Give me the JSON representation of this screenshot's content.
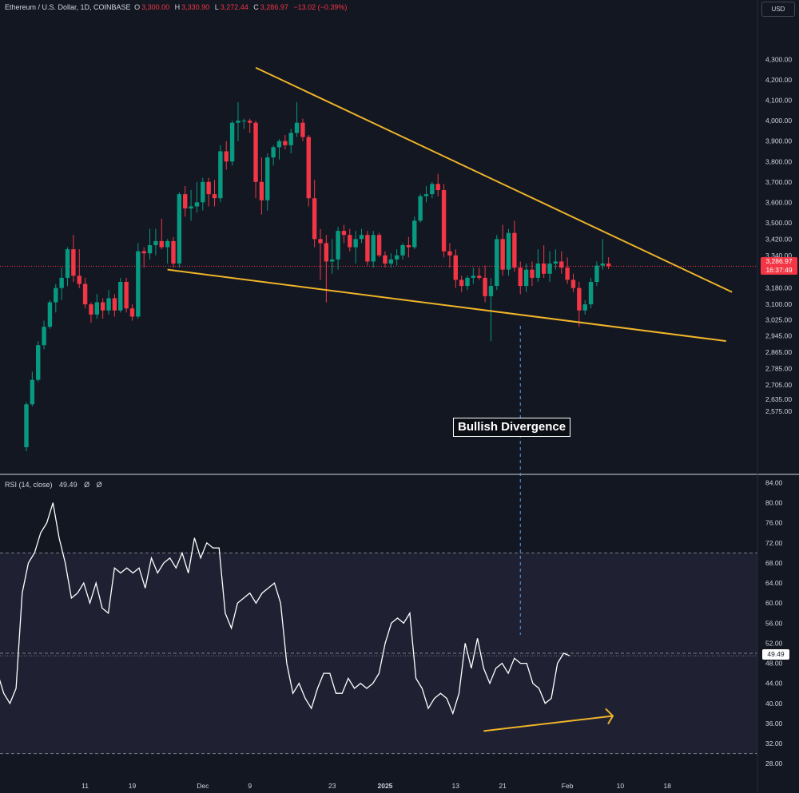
{
  "header": {
    "symbol": "Ethereum / U.S. Dollar, 1D, COINBASE",
    "o_label": "O",
    "o_value": "3,300.00",
    "h_label": "H",
    "h_value": "3,330.90",
    "l_label": "L",
    "l_value": "3,272.44",
    "c_label": "C",
    "c_value": "3,286.97",
    "change": "−13.02 (−0.39%)"
  },
  "currency_button": "USD",
  "price_tag": {
    "price": "3,286.97",
    "countdown": "16:37:49"
  },
  "rsi_legend": {
    "label": "RSI (14, close)",
    "value": "49.49",
    "extra1": "Ø",
    "extra2": "Ø"
  },
  "rsi_tag": "49.49",
  "annotation": "Bullish Divergence",
  "colors": {
    "background": "#131722",
    "bull": "#089981",
    "bear": "#f23645",
    "trendline": "#f0b429",
    "rsi_line": "#ffffff",
    "rsi_band": "#1f2133"
  },
  "chart_data": {
    "type": "candlestick",
    "title": "Ethereum / U.S. Dollar, 1D, COINBASE",
    "price_axis_ticks": [
      "4,300.00",
      "4,200.00",
      "4,100.00",
      "4,000.00",
      "3,900.00",
      "3,800.00",
      "3,700.00",
      "3,600.00",
      "3,500.00",
      "3,420.00",
      "3,340.00",
      "3,180.00",
      "3,100.00",
      "3,025.00",
      "2,945.00",
      "2,865.00",
      "2,785.00",
      "2,705.00",
      "2,635.00",
      "2,575.00"
    ],
    "price_axis_values": [
      4300,
      4200,
      4100,
      4000,
      3900,
      3800,
      3700,
      3600,
      3500,
      3420,
      3340,
      3180,
      3100,
      3025,
      2945,
      2865,
      2785,
      2705,
      2635,
      2575
    ],
    "rsi_axis_ticks": [
      "84.00",
      "80.00",
      "76.00",
      "72.00",
      "68.00",
      "64.00",
      "60.00",
      "56.00",
      "52.00",
      "48.00",
      "44.00",
      "40.00",
      "36.00",
      "32.00",
      "28.00"
    ],
    "rsi_axis_values": [
      84,
      80,
      76,
      72,
      68,
      64,
      60,
      56,
      52,
      48,
      44,
      40,
      36,
      32,
      28
    ],
    "x_ticks": [
      {
        "label": "11",
        "index": 10
      },
      {
        "label": "19",
        "index": 18
      },
      {
        "label": "Dec",
        "index": 30
      },
      {
        "label": "9",
        "index": 38
      },
      {
        "label": "23",
        "index": 52
      },
      {
        "label": "2025",
        "index": 61
      },
      {
        "label": "13",
        "index": 73
      },
      {
        "label": "21",
        "index": 81
      },
      {
        "label": "Feb",
        "index": 92
      },
      {
        "label": "10",
        "index": 101
      },
      {
        "label": "18",
        "index": 109
      }
    ],
    "candles": [
      {
        "o": 2400,
        "h": 2620,
        "l": 2380,
        "c": 2610
      },
      {
        "o": 2610,
        "h": 2770,
        "l": 2600,
        "c": 2730
      },
      {
        "o": 2730,
        "h": 2920,
        "l": 2720,
        "c": 2900
      },
      {
        "o": 2900,
        "h": 3020,
        "l": 2880,
        "c": 2990
      },
      {
        "o": 2990,
        "h": 3120,
        "l": 2980,
        "c": 3110
      },
      {
        "o": 3110,
        "h": 3200,
        "l": 3060,
        "c": 3180
      },
      {
        "o": 3180,
        "h": 3280,
        "l": 3120,
        "c": 3230
      },
      {
        "o": 3230,
        "h": 3380,
        "l": 3190,
        "c": 3370
      },
      {
        "o": 3370,
        "h": 3440,
        "l": 3210,
        "c": 3240
      },
      {
        "o": 3240,
        "h": 3370,
        "l": 3180,
        "c": 3200
      },
      {
        "o": 3200,
        "h": 3230,
        "l": 3080,
        "c": 3100
      },
      {
        "o": 3100,
        "h": 3110,
        "l": 3010,
        "c": 3050
      },
      {
        "o": 3050,
        "h": 3150,
        "l": 3030,
        "c": 3110
      },
      {
        "o": 3110,
        "h": 3130,
        "l": 3030,
        "c": 3070
      },
      {
        "o": 3070,
        "h": 3170,
        "l": 3050,
        "c": 3130
      },
      {
        "o": 3130,
        "h": 3150,
        "l": 3040,
        "c": 3070
      },
      {
        "o": 3070,
        "h": 3230,
        "l": 3060,
        "c": 3210
      },
      {
        "o": 3210,
        "h": 3230,
        "l": 3060,
        "c": 3080
      },
      {
        "o": 3080,
        "h": 3100,
        "l": 3020,
        "c": 3040
      },
      {
        "o": 3040,
        "h": 3400,
        "l": 3030,
        "c": 3360
      },
      {
        "o": 3360,
        "h": 3380,
        "l": 3280,
        "c": 3350
      },
      {
        "o": 3350,
        "h": 3470,
        "l": 3320,
        "c": 3390
      },
      {
        "o": 3390,
        "h": 3470,
        "l": 3340,
        "c": 3410
      },
      {
        "o": 3410,
        "h": 3520,
        "l": 3370,
        "c": 3380
      },
      {
        "o": 3380,
        "h": 3420,
        "l": 3300,
        "c": 3410
      },
      {
        "o": 3410,
        "h": 3430,
        "l": 3280,
        "c": 3300
      },
      {
        "o": 3300,
        "h": 3650,
        "l": 3280,
        "c": 3640
      },
      {
        "o": 3640,
        "h": 3680,
        "l": 3530,
        "c": 3570
      },
      {
        "o": 3570,
        "h": 3660,
        "l": 3510,
        "c": 3580
      },
      {
        "o": 3580,
        "h": 3700,
        "l": 3550,
        "c": 3600
      },
      {
        "o": 3600,
        "h": 3720,
        "l": 3560,
        "c": 3700
      },
      {
        "o": 3700,
        "h": 3720,
        "l": 3580,
        "c": 3640
      },
      {
        "o": 3640,
        "h": 3710,
        "l": 3580,
        "c": 3620
      },
      {
        "o": 3620,
        "h": 3880,
        "l": 3600,
        "c": 3850
      },
      {
        "o": 3850,
        "h": 3900,
        "l": 3760,
        "c": 3800
      },
      {
        "o": 3800,
        "h": 4000,
        "l": 3780,
        "c": 3990
      },
      {
        "o": 3990,
        "h": 4090,
        "l": 3900,
        "c": 4000
      },
      {
        "o": 4000,
        "h": 4010,
        "l": 3960,
        "c": 4000
      },
      {
        "o": 4000,
        "h": 4010,
        "l": 3940,
        "c": 3990
      },
      {
        "o": 3990,
        "h": 4000,
        "l": 3620,
        "c": 3700
      },
      {
        "o": 3700,
        "h": 3820,
        "l": 3540,
        "c": 3610
      },
      {
        "o": 3610,
        "h": 3840,
        "l": 3560,
        "c": 3820
      },
      {
        "o": 3820,
        "h": 3880,
        "l": 3780,
        "c": 3870
      },
      {
        "o": 3870,
        "h": 3910,
        "l": 3810,
        "c": 3900
      },
      {
        "o": 3900,
        "h": 3930,
        "l": 3860,
        "c": 3880
      },
      {
        "o": 3880,
        "h": 3960,
        "l": 3840,
        "c": 3940
      },
      {
        "o": 3940,
        "h": 4090,
        "l": 3920,
        "c": 3990
      },
      {
        "o": 3990,
        "h": 4010,
        "l": 3900,
        "c": 3920
      },
      {
        "o": 3920,
        "h": 3930,
        "l": 3580,
        "c": 3620
      },
      {
        "o": 3620,
        "h": 3710,
        "l": 3380,
        "c": 3420
      },
      {
        "o": 3420,
        "h": 3470,
        "l": 3220,
        "c": 3400
      },
      {
        "o": 3400,
        "h": 3440,
        "l": 3110,
        "c": 3310
      },
      {
        "o": 3310,
        "h": 3420,
        "l": 3250,
        "c": 3320
      },
      {
        "o": 3320,
        "h": 3480,
        "l": 3270,
        "c": 3460
      },
      {
        "o": 3460,
        "h": 3490,
        "l": 3400,
        "c": 3440
      },
      {
        "o": 3440,
        "h": 3470,
        "l": 3360,
        "c": 3380
      },
      {
        "o": 3380,
        "h": 3460,
        "l": 3300,
        "c": 3420
      },
      {
        "o": 3420,
        "h": 3470,
        "l": 3400,
        "c": 3440
      },
      {
        "o": 3440,
        "h": 3460,
        "l": 3290,
        "c": 3310
      },
      {
        "o": 3310,
        "h": 3460,
        "l": 3280,
        "c": 3440
      },
      {
        "o": 3440,
        "h": 3450,
        "l": 3330,
        "c": 3340
      },
      {
        "o": 3340,
        "h": 3360,
        "l": 3280,
        "c": 3300
      },
      {
        "o": 3300,
        "h": 3350,
        "l": 3280,
        "c": 3320
      },
      {
        "o": 3320,
        "h": 3370,
        "l": 3290,
        "c": 3340
      },
      {
        "o": 3340,
        "h": 3400,
        "l": 3320,
        "c": 3390
      },
      {
        "o": 3390,
        "h": 3430,
        "l": 3330,
        "c": 3380
      },
      {
        "o": 3380,
        "h": 3530,
        "l": 3370,
        "c": 3510
      },
      {
        "o": 3510,
        "h": 3640,
        "l": 3500,
        "c": 3630
      },
      {
        "o": 3630,
        "h": 3680,
        "l": 3600,
        "c": 3640
      },
      {
        "o": 3640,
        "h": 3700,
        "l": 3620,
        "c": 3690
      },
      {
        "o": 3690,
        "h": 3740,
        "l": 3630,
        "c": 3660
      },
      {
        "o": 3660,
        "h": 3690,
        "l": 3330,
        "c": 3360
      },
      {
        "o": 3360,
        "h": 3400,
        "l": 3280,
        "c": 3340
      },
      {
        "o": 3340,
        "h": 3370,
        "l": 3180,
        "c": 3220
      },
      {
        "o": 3220,
        "h": 3240,
        "l": 3160,
        "c": 3190
      },
      {
        "o": 3190,
        "h": 3240,
        "l": 3170,
        "c": 3230
      },
      {
        "o": 3230,
        "h": 3280,
        "l": 3200,
        "c": 3240
      },
      {
        "o": 3240,
        "h": 3280,
        "l": 3220,
        "c": 3230
      },
      {
        "o": 3230,
        "h": 3290,
        "l": 3110,
        "c": 3140
      },
      {
        "o": 3140,
        "h": 3230,
        "l": 2920,
        "c": 3190
      },
      {
        "o": 3190,
        "h": 3440,
        "l": 3170,
        "c": 3420
      },
      {
        "o": 3420,
        "h": 3490,
        "l": 3240,
        "c": 3270
      },
      {
        "o": 3270,
        "h": 3470,
        "l": 3240,
        "c": 3450
      },
      {
        "o": 3450,
        "h": 3510,
        "l": 3260,
        "c": 3280
      },
      {
        "o": 3280,
        "h": 3310,
        "l": 3150,
        "c": 3190
      },
      {
        "o": 3190,
        "h": 3300,
        "l": 3160,
        "c": 3270
      },
      {
        "o": 3270,
        "h": 3310,
        "l": 3190,
        "c": 3230
      },
      {
        "o": 3230,
        "h": 3370,
        "l": 3210,
        "c": 3300
      },
      {
        "o": 3300,
        "h": 3390,
        "l": 3230,
        "c": 3250
      },
      {
        "o": 3250,
        "h": 3360,
        "l": 3210,
        "c": 3300
      },
      {
        "o": 3300,
        "h": 3370,
        "l": 3270,
        "c": 3310
      },
      {
        "o": 3310,
        "h": 3360,
        "l": 3250,
        "c": 3280
      },
      {
        "o": 3280,
        "h": 3330,
        "l": 3200,
        "c": 3220
      },
      {
        "o": 3220,
        "h": 3250,
        "l": 3160,
        "c": 3180
      },
      {
        "o": 3180,
        "h": 3210,
        "l": 2990,
        "c": 3070
      },
      {
        "o": 3070,
        "h": 3120,
        "l": 3050,
        "c": 3100
      },
      {
        "o": 3100,
        "h": 3230,
        "l": 3080,
        "c": 3210
      },
      {
        "o": 3210,
        "h": 3310,
        "l": 3190,
        "c": 3290
      },
      {
        "o": 3290,
        "h": 3420,
        "l": 3270,
        "c": 3300
      },
      {
        "o": 3300,
        "h": 3330.9,
        "l": 3272.44,
        "c": 3286.97
      }
    ],
    "rsi": [
      46,
      42,
      40,
      43,
      62,
      68,
      70,
      74,
      76,
      80,
      73,
      68,
      61,
      62,
      64,
      60,
      64,
      59,
      58,
      67,
      66,
      67,
      66,
      67,
      63,
      69,
      66,
      68,
      69,
      67,
      70,
      66,
      73,
      69,
      72,
      71,
      71,
      58,
      55,
      60,
      61,
      62,
      60,
      62,
      63,
      64,
      60,
      48,
      42,
      44,
      41,
      39,
      43,
      46,
      46,
      42,
      42,
      45,
      43,
      44,
      43,
      44,
      46,
      52,
      56,
      57,
      56,
      58,
      45,
      43,
      39,
      41,
      42,
      41,
      38,
      42,
      52,
      47,
      53,
      47,
      44,
      47,
      48,
      46,
      49,
      48,
      48,
      44,
      43,
      40,
      41,
      48,
      50,
      49.49
    ],
    "trendlines": [
      {
        "name": "upper",
        "from": {
          "index": 39,
          "price": 4260
        },
        "to": {
          "index": 120,
          "price": 3160
        }
      },
      {
        "name": "lower",
        "from": {
          "index": 24,
          "price": 3270
        },
        "to": {
          "index": 119,
          "price": 2920
        }
      },
      {
        "name": "rsi-divergence-arrow",
        "from": {
          "index": 79,
          "rsi": 34.5
        },
        "to": {
          "index": 100,
          "rsi": 37.5
        }
      }
    ],
    "divergence_marker": {
      "index": 84
    }
  }
}
